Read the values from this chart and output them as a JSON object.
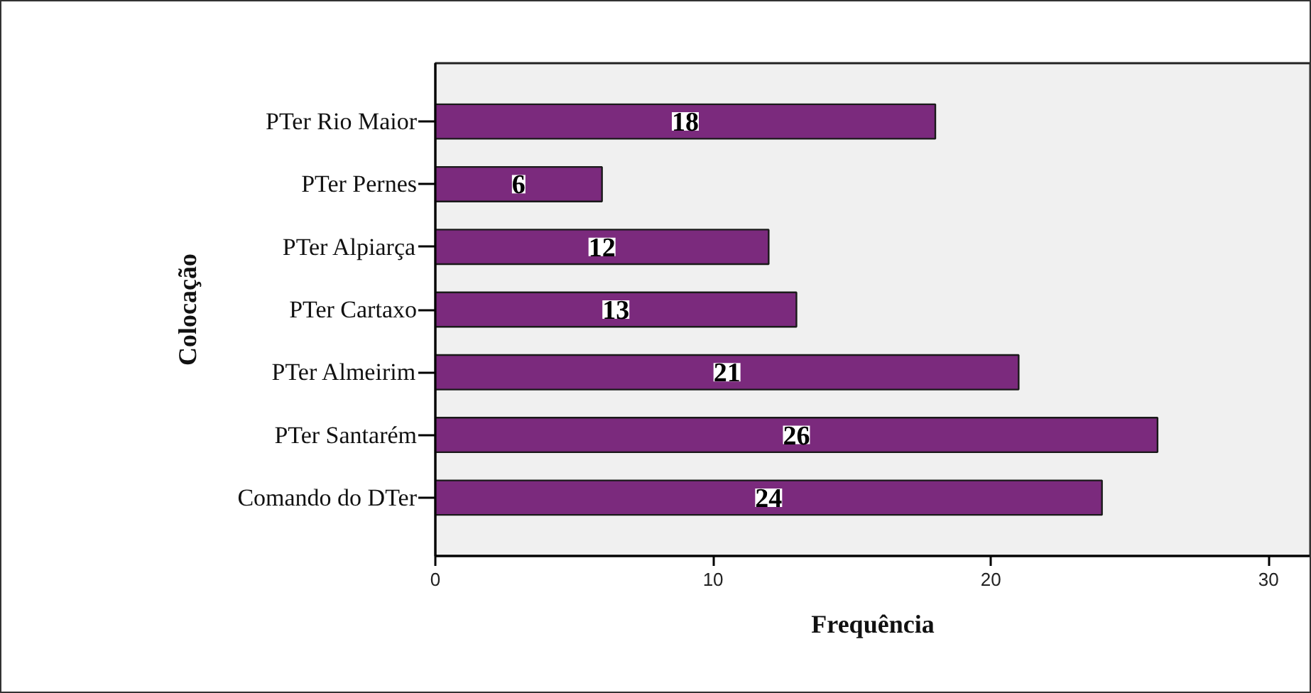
{
  "chart_data": {
    "type": "bar",
    "orientation": "horizontal",
    "categories": [
      "PTer Rio Maior",
      "PTer Pernes",
      "PTer Alpiarça",
      "PTer Cartaxo",
      "PTer Almeirim",
      "PTer Santarém",
      "Comando do DTer"
    ],
    "values": [
      18,
      6,
      12,
      13,
      21,
      26,
      24
    ],
    "color": "#7b2a7d",
    "xlim": [
      0,
      31.5
    ],
    "xticks": [
      0,
      10,
      20,
      30
    ],
    "xlabel": "Frequência",
    "ylabel": "Colocação",
    "data_labels": true,
    "grid": false
  }
}
